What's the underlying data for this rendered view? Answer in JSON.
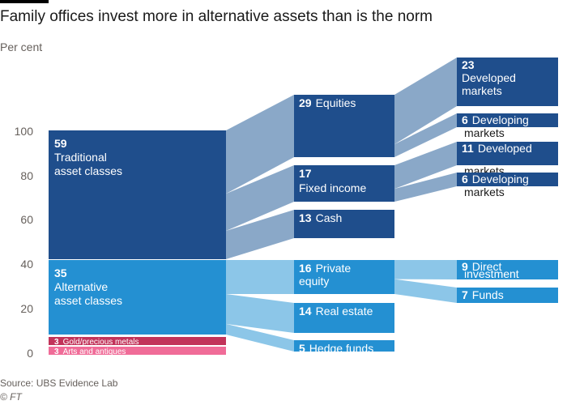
{
  "title": "Family offices invest more in alternative assets than is the norm",
  "subtitle": "Per cent",
  "source": "Source: UBS Evidence Lab",
  "credit": "© FT",
  "colors": {
    "dark_blue": "#1f4e8c",
    "mid_blue": "#2490d2",
    "dark_flow": "#8aa8c8",
    "light_flow": "#8cc6e8",
    "gold_metals": "#c2335a",
    "arts": "#f06c98"
  },
  "chart_data": {
    "type": "sankey",
    "ylim": [
      0,
      100
    ],
    "yticks": [
      "100",
      "80",
      "60",
      "40",
      "20",
      "0"
    ],
    "level1": [
      {
        "id": "traditional",
        "value": 59,
        "value_label": "59",
        "label_lines": [
          "Traditional",
          "asset classes"
        ]
      },
      {
        "id": "alternative",
        "value": 35,
        "value_label": "35",
        "label_lines": [
          "Alternative",
          "asset classes"
        ]
      },
      {
        "id": "gold",
        "value": 3,
        "value_label": "3",
        "label": "Gold/precious metals"
      },
      {
        "id": "arts",
        "value": 3,
        "value_label": "3",
        "label": "Arts and antiques"
      }
    ],
    "level2": [
      {
        "id": "equities",
        "parent": "traditional",
        "value": 29,
        "value_label": "29",
        "label": "Equities"
      },
      {
        "id": "fixed_income",
        "parent": "traditional",
        "value": 17,
        "value_label": "17",
        "label": "Fixed income"
      },
      {
        "id": "cash",
        "parent": "traditional",
        "value": 13,
        "value_label": "13",
        "label": "Cash"
      },
      {
        "id": "private_equity",
        "parent": "alternative",
        "value": 16,
        "value_label": "16",
        "label_lines": [
          "Private",
          "equity"
        ]
      },
      {
        "id": "real_estate",
        "parent": "alternative",
        "value": 14,
        "value_label": "14",
        "label": "Real estate"
      },
      {
        "id": "hedge_funds",
        "parent": "alternative",
        "value": 5,
        "value_label": "5",
        "label": "Hedge funds"
      }
    ],
    "level3": [
      {
        "id": "eq_developed",
        "parent": "equities",
        "value": 23,
        "value_label": "23",
        "label_lines": [
          "Developed",
          "markets"
        ]
      },
      {
        "id": "eq_developing",
        "parent": "equities",
        "value": 6,
        "value_label": "6",
        "label_lines": [
          "Developing",
          "markets"
        ]
      },
      {
        "id": "fi_developed",
        "parent": "fixed_income",
        "value": 11,
        "value_label": "11",
        "label_lines": [
          "Developed",
          "markets"
        ]
      },
      {
        "id": "fi_developing",
        "parent": "fixed_income",
        "value": 6,
        "value_label": "6",
        "label_lines": [
          "Developing",
          "markets"
        ]
      },
      {
        "id": "pe_direct",
        "parent": "private_equity",
        "value": 9,
        "value_label": "9",
        "label_lines": [
          "Direct",
          "investment"
        ]
      },
      {
        "id": "pe_funds",
        "parent": "private_equity",
        "value": 7,
        "value_label": "7",
        "label": "Funds"
      }
    ]
  }
}
